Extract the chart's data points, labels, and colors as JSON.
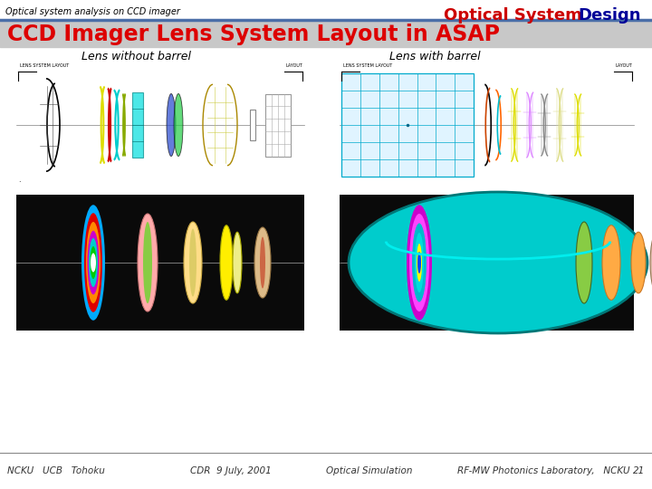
{
  "title_small": "Optical system analysis on CCD imager",
  "title_brand_optical": "Optical System",
  "title_brand_design": "Design",
  "section_title": "CCD Imager Lens System Layout in ASAP",
  "label_left": "Lens without barrel",
  "label_right": "Lens with barrel",
  "footer_left": "NCKU   UCB   Tohoku",
  "footer_center": "CDR  9 July, 2001",
  "footer_center2": "Optical Simulation",
  "footer_right": "RF-MW Photonics Laboratory,   NCKU",
  "footer_num": "21",
  "bg_color": "#ffffff",
  "header_line_color": "#4a6ea8",
  "section_title_color": "#dd0000",
  "section_bg_color": "#cccccc",
  "brand_color1": "#cc0000",
  "brand_color2": "#000099",
  "footer_color": "#333333",
  "label_color": "#000000"
}
